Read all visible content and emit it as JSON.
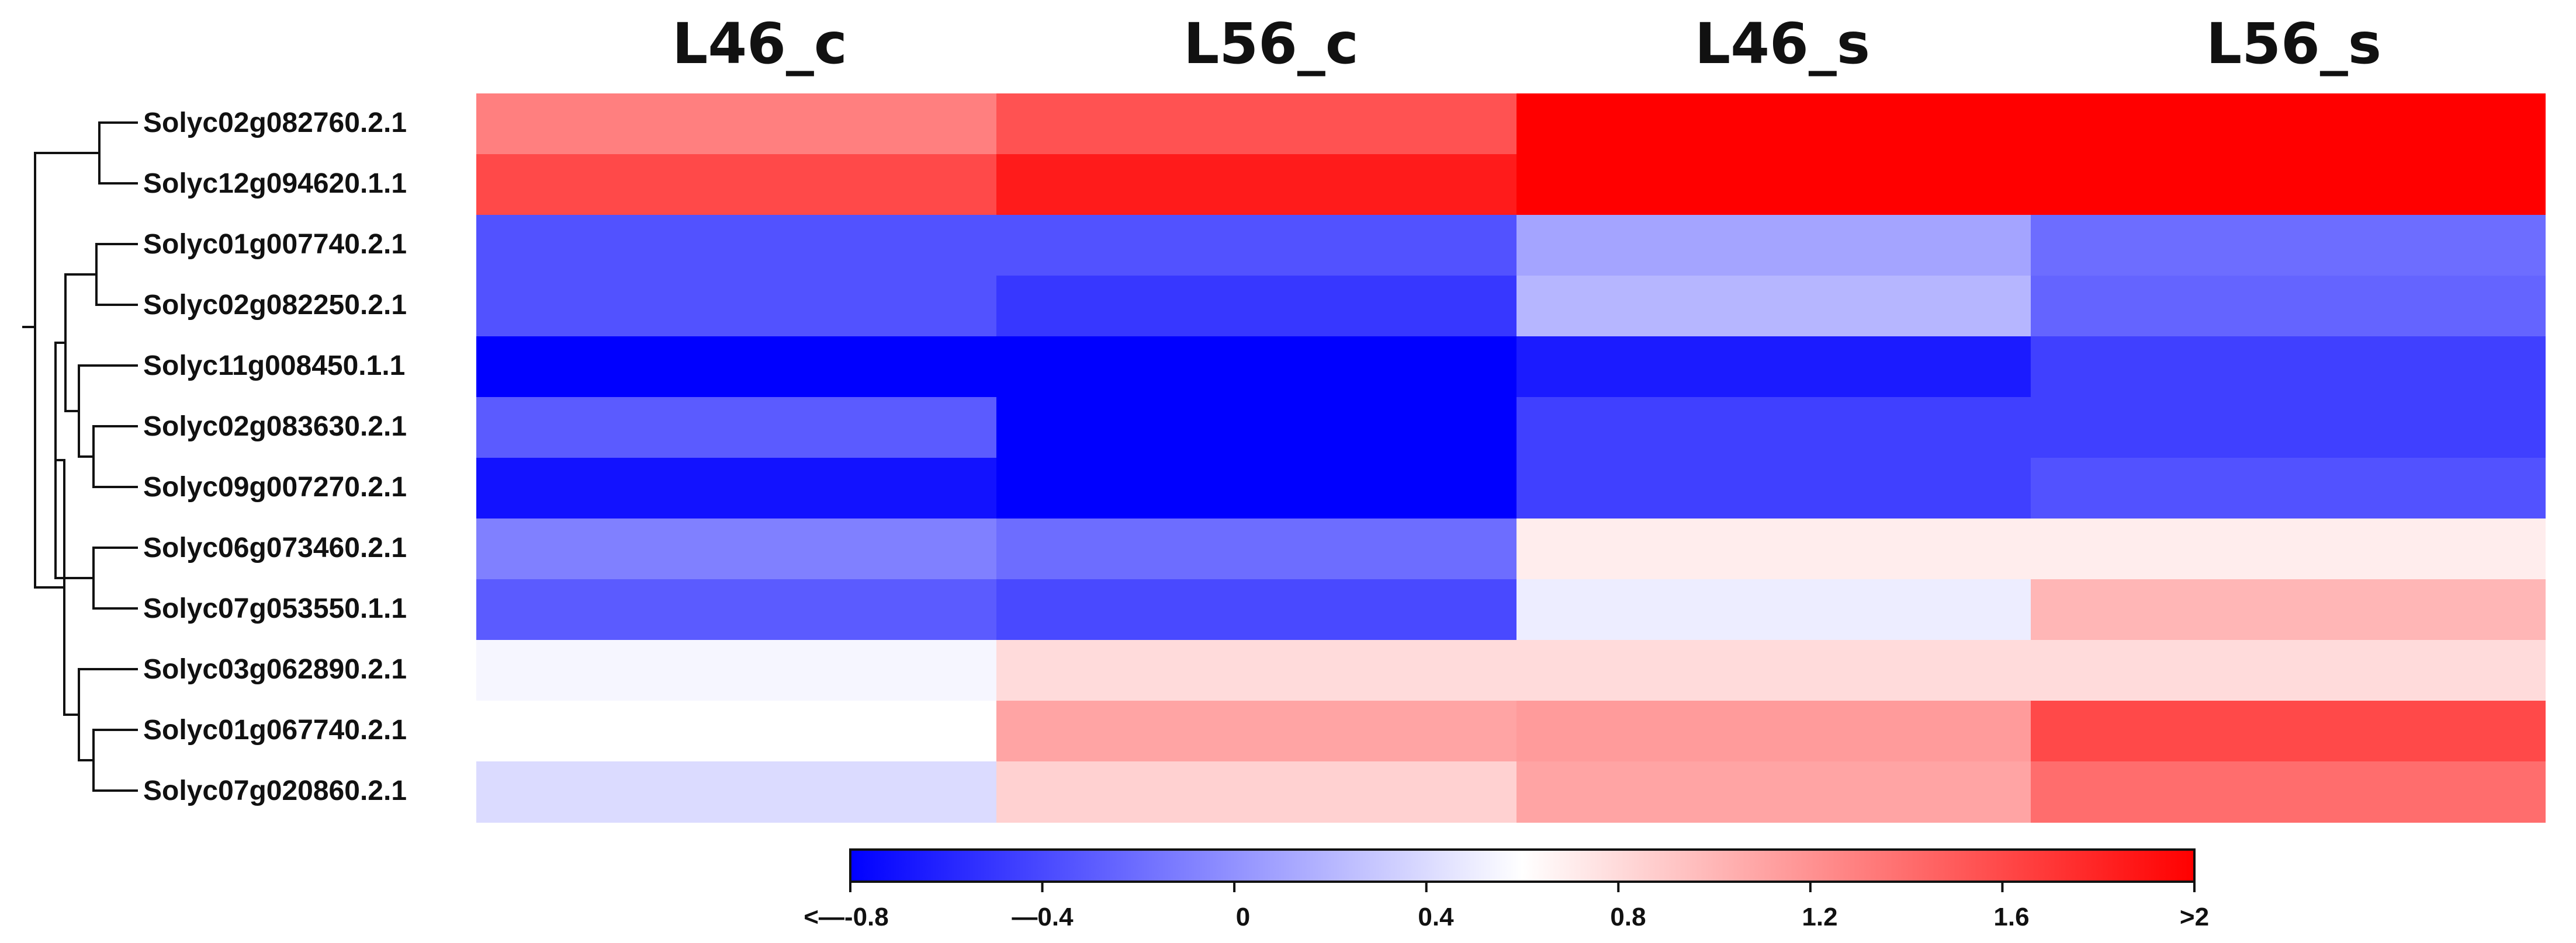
{
  "chart_data": {
    "type": "heatmap",
    "title": "",
    "columns": [
      "L46_c",
      "L56_c",
      "L46_s",
      "L56_s"
    ],
    "rows": [
      "Solyc02g082760.2.1",
      "Solyc12g094620.1.1",
      "Solyc01g007740.2.1",
      "Solyc02g082250.2.1",
      "Solyc11g008450.1.1",
      "Solyc02g083630.2.1",
      "Solyc09g007270.2.1",
      "Solyc06g073460.2.1",
      "Solyc07g053550.1.1",
      "Solyc03g062890.2.1",
      "Solyc01g067740.2.1",
      "Solyc07g020860.2.1"
    ],
    "values": [
      [
        1.3,
        1.55,
        2.0,
        2.0
      ],
      [
        1.6,
        1.85,
        2.0,
        2.0
      ],
      [
        -0.35,
        -0.35,
        0.1,
        -0.2
      ],
      [
        -0.35,
        -0.5,
        0.2,
        -0.25
      ],
      [
        -0.8,
        -0.8,
        -0.65,
        -0.45
      ],
      [
        -0.3,
        -0.8,
        -0.45,
        -0.45
      ],
      [
        -0.7,
        -0.8,
        -0.45,
        -0.35
      ],
      [
        -0.1,
        -0.2,
        0.7,
        0.7
      ],
      [
        -0.3,
        -0.4,
        0.5,
        1.0
      ],
      [
        0.55,
        0.8,
        0.8,
        0.8
      ],
      [
        0.6,
        1.1,
        1.15,
        1.6
      ],
      [
        0.4,
        0.85,
        1.1,
        1.4
      ]
    ],
    "colorscale": {
      "min": -0.8,
      "mid": 0.6,
      "max": 2.0,
      "low_color": "#0000ff",
      "mid_color": "#ffffff",
      "high_color": "#ff0000"
    },
    "colorbar_ticks": [
      "<—-0.8",
      "—0.4",
      "0",
      "0.4",
      "0.8",
      "1.2",
      "1.6",
      ">2"
    ],
    "colorbar_tick_values": [
      -0.8,
      -0.4,
      0,
      0.4,
      0.8,
      1.2,
      1.6,
      2.0
    ],
    "dendrogram": "row clustering tree (left)"
  }
}
